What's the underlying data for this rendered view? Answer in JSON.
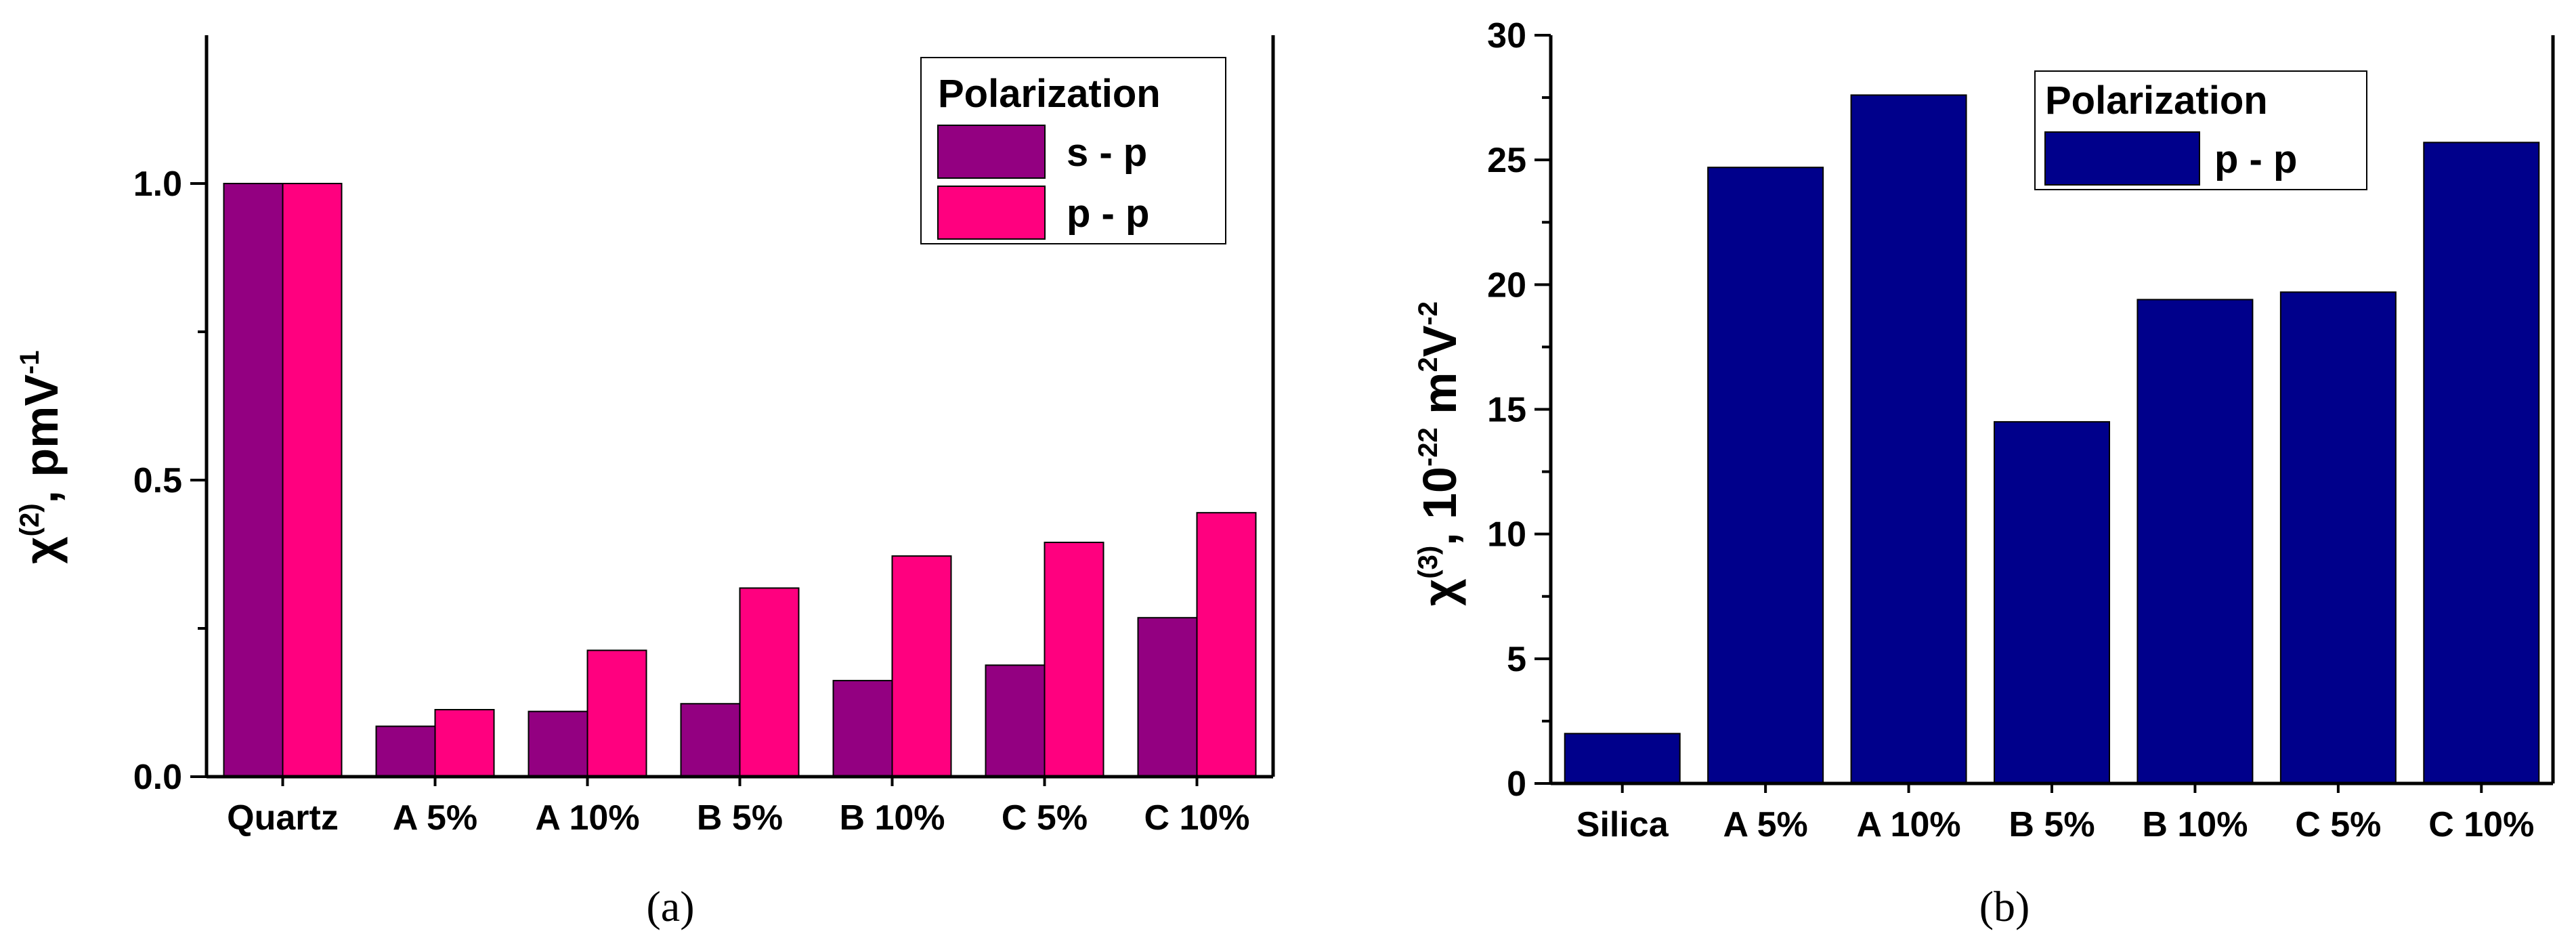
{
  "chart_data": [
    {
      "type": "bar",
      "panel_label": "(a)",
      "categories": [
        "Quartz",
        "A 5%",
        "A 10%",
        "B 5%",
        "B 10%",
        "C 5%",
        "C 10%"
      ],
      "series": [
        {
          "name": "s - p",
          "color": "#930081",
          "values": [
            1.0,
            0.085,
            0.11,
            0.123,
            0.162,
            0.188,
            0.268
          ]
        },
        {
          "name": "p - p",
          "color": "#ff007f",
          "values": [
            1.0,
            0.113,
            0.213,
            0.318,
            0.372,
            0.395,
            0.445
          ]
        }
      ],
      "ylim": [
        0,
        1.25
      ],
      "yticks": [
        "0.0",
        "0.5",
        "1.0"
      ],
      "ylabel": {
        "base": "χ",
        "sup1": "(2)",
        "mid": ", pmV",
        "sup2": "-1"
      },
      "legend": {
        "title": "Polarization",
        "position": "top-right"
      },
      "bar_stroke": "#000000"
    },
    {
      "type": "bar",
      "panel_label": "(b)",
      "categories": [
        "Silica",
        "A 5%",
        "A 10%",
        "B 5%",
        "B 10%",
        "C 5%",
        "C 10%"
      ],
      "series": [
        {
          "name": "p - p",
          "color": "#00008b",
          "values": [
            2.0,
            24.7,
            27.6,
            14.5,
            19.4,
            19.7,
            25.7
          ]
        }
      ],
      "ylim": [
        0,
        30
      ],
      "yticks": [
        "0",
        "5",
        "10",
        "15",
        "20",
        "25",
        "30"
      ],
      "ylabel": {
        "base": "χ",
        "sup1": "(3)",
        "mid": ", 10",
        "sup2": "-22",
        "mid2": " m",
        "sup3": "2",
        "mid3": "V",
        "sup4": "-2"
      },
      "legend": {
        "title": "Polarization",
        "position": "top-right"
      },
      "bar_stroke": "#000000"
    }
  ]
}
